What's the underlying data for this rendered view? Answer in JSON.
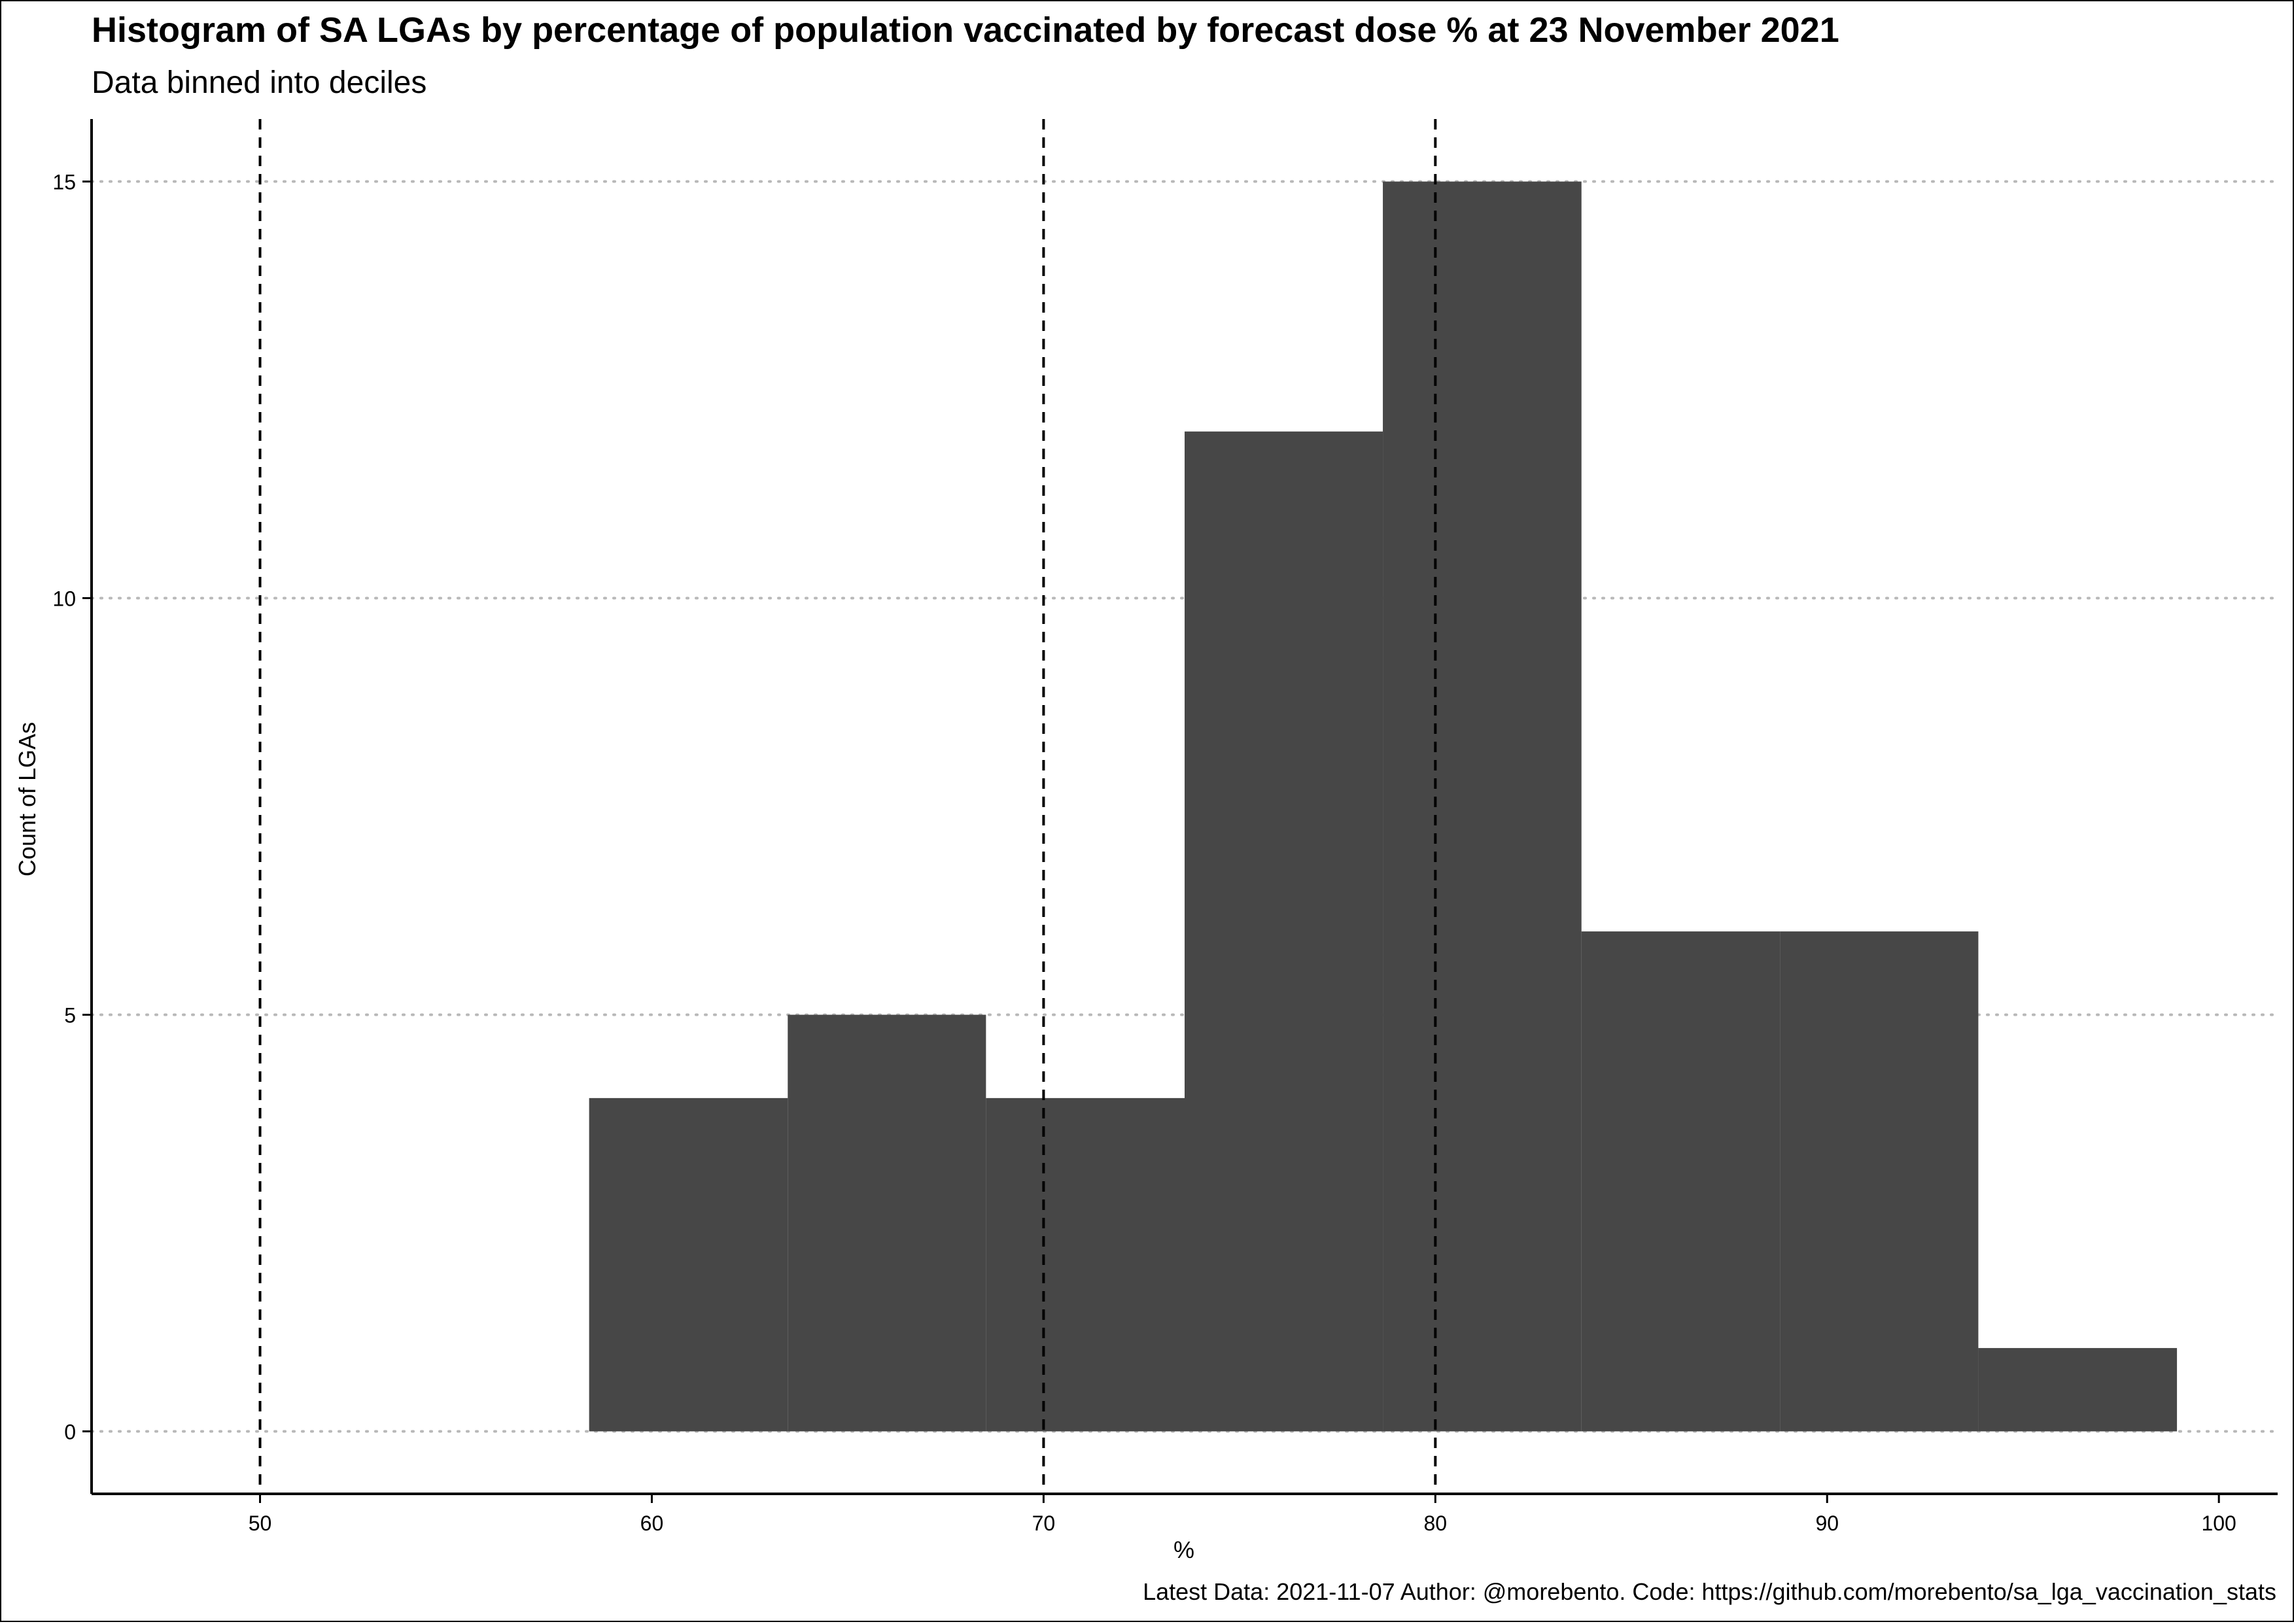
{
  "chart_data": {
    "type": "bar",
    "title": "Histogram of SA LGAs by percentage of population vaccinated by forecast dose % at 23 November 2021",
    "subtitle": "Data binned into deciles",
    "xlabel": "%",
    "ylabel": "Count of LGAs",
    "caption": "Latest Data: 2021-11-07 Author: @morebento. Code: https://github.com/morebento/sa_lga_vaccination_stats",
    "xlim": [
      45.7,
      101.5
    ],
    "ylim": [
      -0.75,
      15.75
    ],
    "x_ticks": [
      50,
      60,
      70,
      80,
      90,
      100
    ],
    "y_ticks": [
      0,
      5,
      10,
      15
    ],
    "bins": [
      {
        "x0": 58.4,
        "x1": 63.47,
        "count": 4
      },
      {
        "x0": 63.47,
        "x1": 68.53,
        "count": 5
      },
      {
        "x0": 68.53,
        "x1": 73.6,
        "count": 4
      },
      {
        "x0": 73.6,
        "x1": 78.66,
        "count": 12
      },
      {
        "x0": 78.66,
        "x1": 83.73,
        "count": 15
      },
      {
        "x0": 83.73,
        "x1": 88.8,
        "count": 6
      },
      {
        "x0": 88.8,
        "x1": 93.86,
        "count": 6
      },
      {
        "x0": 93.86,
        "x1": 98.93,
        "count": 1
      }
    ],
    "reference_lines_x": [
      50,
      70,
      80
    ],
    "bar_color": "#474747",
    "grid": {
      "major_y": true,
      "style": "dotted",
      "color": "#b8b8b8"
    }
  }
}
